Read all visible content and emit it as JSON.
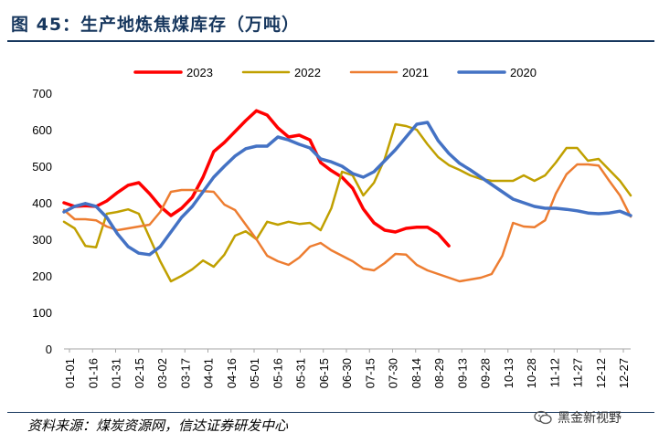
{
  "page": {
    "title": "图 45：生产地炼焦煤库存（万吨）",
    "source": "资料来源：煤炭资源网，信达证券研发中心",
    "watermark": "黑金新视野",
    "watermark_icon": "wechat-icon"
  },
  "chart_data": {
    "type": "line",
    "title": "",
    "xlabel": "",
    "ylabel": "",
    "ylim": [
      0,
      700
    ],
    "yticks": [
      0,
      100,
      200,
      300,
      400,
      500,
      600,
      700
    ],
    "grid": false,
    "legend_position": "top",
    "x_labels": [
      "01-01",
      "01-16",
      "01-31",
      "02-15",
      "03-02",
      "03-17",
      "04-01",
      "04-16",
      "05-01",
      "05-16",
      "05-31",
      "06-15",
      "06-30",
      "07-15",
      "07-30",
      "08-14",
      "08-29",
      "09-13",
      "09-28",
      "10-13",
      "10-28",
      "11-12",
      "11-27",
      "12-12",
      "12-27"
    ],
    "series": [
      {
        "name": "2023",
        "color": "#ff0000",
        "width": 3.5,
        "values": [
          400,
          390,
          392,
          390,
          405,
          428,
          448,
          455,
          425,
          390,
          365,
          385,
          415,
          470,
          540,
          565,
          595,
          625,
          652,
          640,
          605,
          580,
          585,
          572,
          510,
          488,
          470,
          440,
          383,
          345,
          325,
          320,
          330,
          333,
          333,
          315,
          282
        ]
      },
      {
        "name": "2022",
        "color": "#c0a000",
        "width": 2.5,
        "values": [
          348,
          330,
          282,
          278,
          370,
          375,
          382,
          370,
          305,
          240,
          185,
          200,
          218,
          242,
          225,
          258,
          310,
          322,
          300,
          348,
          340,
          348,
          342,
          345,
          325,
          385,
          485,
          475,
          420,
          455,
          520,
          615,
          610,
          600,
          560,
          525,
          503,
          490,
          475,
          465,
          460,
          460,
          460,
          475,
          460,
          475,
          510,
          550,
          550,
          515,
          520,
          490,
          460,
          420
        ]
      },
      {
        "name": "2021",
        "color": "#ed7d31",
        "width": 2.5,
        "values": [
          380,
          355,
          355,
          352,
          335,
          325,
          330,
          335,
          340,
          375,
          430,
          435,
          435,
          432,
          430,
          395,
          380,
          340,
          300,
          255,
          240,
          230,
          250,
          280,
          290,
          270,
          255,
          240,
          220,
          215,
          235,
          260,
          258,
          230,
          215,
          205,
          195,
          185,
          190,
          195,
          205,
          255,
          345,
          335,
          333,
          352,
          425,
          478,
          505,
          505,
          502,
          460,
          420,
          362
        ]
      },
      {
        "name": "2020",
        "color": "#4472c4",
        "width": 3.5,
        "values": [
          375,
          390,
          398,
          390,
          360,
          315,
          280,
          262,
          258,
          280,
          320,
          360,
          390,
          430,
          470,
          500,
          528,
          548,
          555,
          555,
          580,
          572,
          560,
          550,
          520,
          512,
          500,
          480,
          470,
          485,
          515,
          545,
          580,
          615,
          620,
          570,
          535,
          508,
          490,
          470,
          450,
          430,
          410,
          400,
          390,
          385,
          385,
          382,
          378,
          372,
          370,
          372,
          377,
          365
        ]
      }
    ]
  }
}
